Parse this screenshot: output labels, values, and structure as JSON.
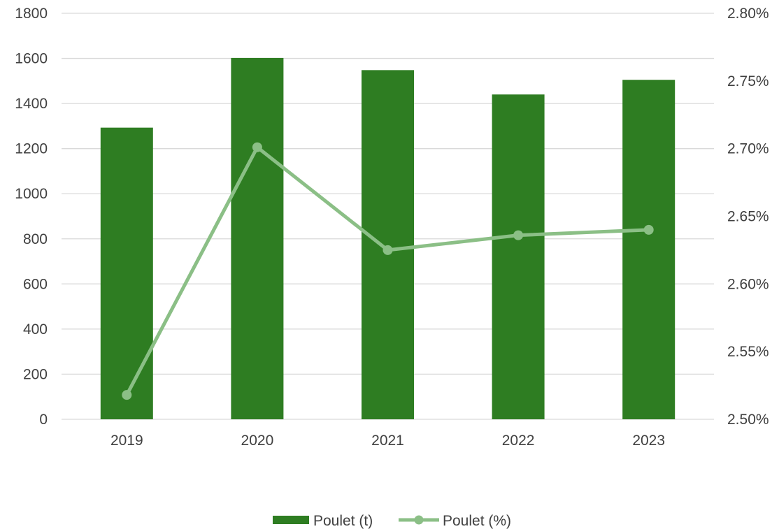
{
  "chart_data": {
    "type": "bar",
    "categories": [
      "2019",
      "2020",
      "2021",
      "2022",
      "2023"
    ],
    "series": [
      {
        "name": "Poulet (t)",
        "kind": "bar",
        "axis": "left",
        "color": "#2E7D22",
        "values": [
          1293,
          1602,
          1548,
          1440,
          1505
        ]
      },
      {
        "name": "Poulet (%)",
        "kind": "line",
        "axis": "right",
        "color": "#8BBF86",
        "values": [
          2.518,
          2.701,
          2.625,
          2.636,
          2.64
        ]
      }
    ],
    "y_left": {
      "min": 0,
      "max": 1800,
      "ticks": [
        "0",
        "200",
        "400",
        "600",
        "800",
        "1000",
        "1200",
        "1400",
        "1600",
        "1800"
      ]
    },
    "y_right": {
      "min": 2.5,
      "max": 2.8,
      "ticks": [
        "2.50%",
        "2.55%",
        "2.60%",
        "2.65%",
        "2.70%",
        "2.75%",
        "2.80%"
      ]
    },
    "grid": true,
    "legend_position": "bottom",
    "title": "",
    "xlabel": "",
    "ylabel": ""
  }
}
